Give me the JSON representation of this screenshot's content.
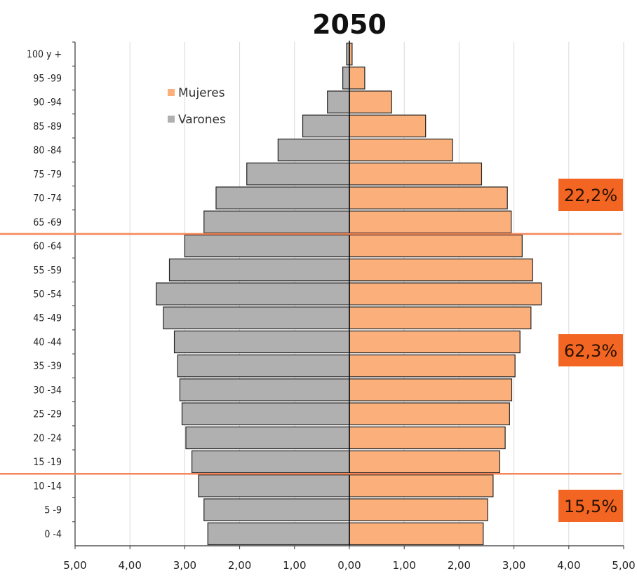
{
  "chart_data": {
    "type": "bar",
    "title": "2050",
    "orientation": "horizontal",
    "categories": [
      "100 y +",
      "95 -99",
      "90 -94",
      "85 -89",
      "80 -84",
      "75 -79",
      "70 -74",
      "65 -69",
      "60 -64",
      "55 -59",
      "50 -54",
      "45 -49",
      "40 -44",
      "35 -39",
      "30 -34",
      "25 -29",
      "20 -24",
      "15 -19",
      "10 -14",
      "5 -9",
      "0 -4"
    ],
    "series": [
      {
        "name": "Mujeres",
        "color": "#fbb07c",
        "values": [
          0.05,
          0.28,
          0.77,
          1.39,
          1.88,
          2.41,
          2.88,
          2.95,
          3.15,
          3.34,
          3.5,
          3.31,
          3.11,
          3.02,
          2.96,
          2.92,
          2.84,
          2.74,
          2.62,
          2.52,
          2.44
        ]
      },
      {
        "name": "Varones",
        "color": "#b0b0b0",
        "values": [
          0.05,
          0.12,
          0.4,
          0.85,
          1.3,
          1.87,
          2.43,
          2.65,
          3.0,
          3.28,
          3.52,
          3.39,
          3.19,
          3.13,
          3.09,
          3.05,
          2.98,
          2.87,
          2.75,
          2.65,
          2.58
        ]
      }
    ],
    "xticks": [
      "5,00",
      "4,00",
      "3,00",
      "2,00",
      "1,00",
      "0,00",
      "1,00",
      "2,00",
      "3,00",
      "4,00",
      "5,00"
    ],
    "xlim": [
      -5,
      5
    ],
    "grid": true,
    "legend_position": "top-left",
    "annotations": [
      {
        "label": "22,2%",
        "color": "#f26522"
      },
      {
        "label": "62,3%",
        "color": "#f26522"
      },
      {
        "label": "15,5%",
        "color": "#f26522"
      }
    ],
    "divider_lines": [
      {
        "between": [
          "65 -69",
          "60 -64"
        ],
        "color": "#f4875a"
      },
      {
        "between": [
          "15 -19",
          "10 -14"
        ],
        "color": "#f4875a"
      }
    ]
  }
}
